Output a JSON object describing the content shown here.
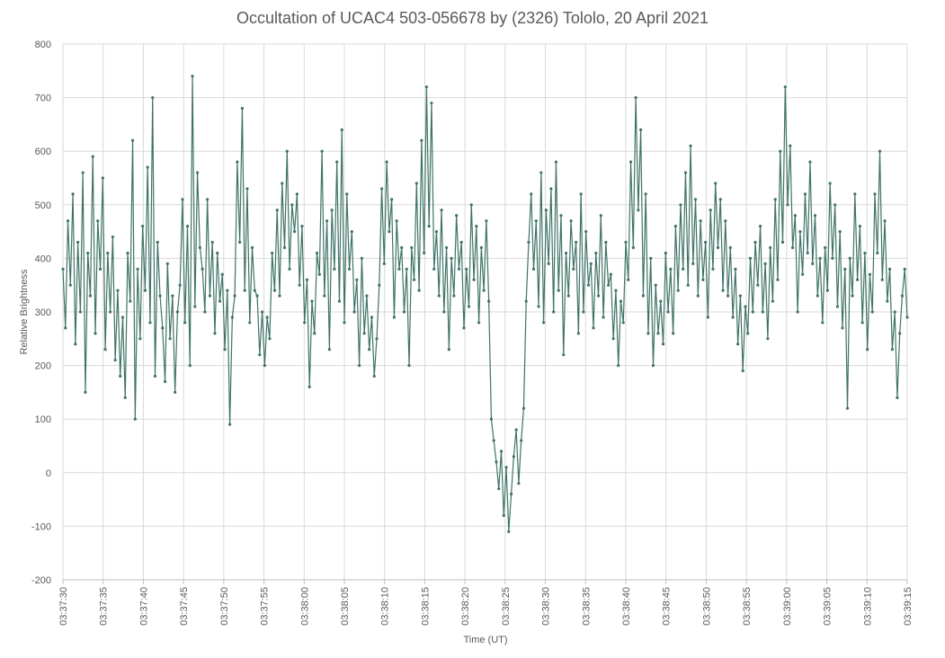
{
  "chart_data": {
    "type": "line",
    "title": "Occultation of UCAC4 503-056678 by (2326) Tololo, 20 April 2021",
    "xlabel": "Time (UT)",
    "ylabel": "Relative Brightness",
    "ylim": [
      -200,
      800
    ],
    "yticks": [
      "-200",
      "-100",
      "0",
      "100",
      "200",
      "300",
      "400",
      "500",
      "600",
      "700",
      "800"
    ],
    "xticks": [
      "03:37:30",
      "03:37:35",
      "03:37:40",
      "03:37:45",
      "03:37:50",
      "03:37:55",
      "03:38:00",
      "03:38:05",
      "03:38:10",
      "03:38:15",
      "03:38:20",
      "03:38:25",
      "03:38:30",
      "03:38:35",
      "03:38:40",
      "03:38:45",
      "03:38:50",
      "03:38:55",
      "03:39:00",
      "03:39:05",
      "03:39:10",
      "03:39:15"
    ],
    "grid": true,
    "line_color": "#3f7366",
    "series": [
      {
        "x_start": "03:37:30",
        "x_end": "03:39:15",
        "approx_values": [
          380,
          270,
          470,
          350,
          520,
          240,
          430,
          300,
          560,
          150,
          410,
          330,
          590,
          260,
          470,
          380,
          550,
          230,
          410,
          300,
          440,
          210,
          340,
          180,
          290,
          140,
          410,
          320,
          620,
          100,
          380,
          250,
          460,
          340,
          570,
          280,
          700,
          180,
          430,
          330,
          270,
          170,
          390,
          250,
          330,
          150,
          300,
          350,
          510,
          280,
          460,
          200,
          740,
          310,
          560,
          420,
          380,
          300,
          510,
          330,
          430,
          260,
          410,
          320,
          370,
          230,
          340,
          90,
          290,
          330,
          580,
          430,
          680,
          340,
          530,
          280,
          420,
          340,
          330,
          220,
          300,
          200,
          290,
          250,
          410,
          340,
          490,
          330,
          540,
          420,
          600,
          380,
          500,
          450,
          520,
          350,
          460,
          280,
          360,
          160,
          320,
          260,
          410,
          370,
          600,
          330,
          470,
          230,
          490,
          380,
          580,
          320,
          640,
          280,
          520,
          380,
          450,
          300,
          360,
          200,
          400,
          260,
          330,
          230,
          290,
          180,
          250,
          350,
          530,
          390,
          580,
          450,
          510,
          290,
          470,
          380,
          420,
          300,
          380,
          200,
          420,
          360,
          540,
          340,
          620,
          410,
          720,
          460,
          690,
          380,
          450,
          330,
          490,
          300,
          420,
          230,
          400,
          330,
          480,
          380,
          430,
          270,
          380,
          310,
          500,
          360,
          460,
          280,
          420,
          340,
          470,
          320,
          100,
          60,
          20,
          -30,
          40,
          -80,
          10,
          -110,
          -40,
          30,
          80,
          -20,
          60,
          120,
          320,
          430,
          520,
          380,
          470,
          310,
          560,
          280,
          490,
          390,
          530,
          300,
          580,
          340,
          480,
          220,
          410,
          330,
          470,
          380,
          430,
          260,
          520,
          300,
          450,
          350,
          390,
          270,
          410,
          330,
          480,
          290,
          430,
          350,
          370,
          250,
          340,
          200,
          320,
          280,
          430,
          360,
          580,
          420,
          700,
          490,
          640,
          330,
          520,
          260,
          400,
          200,
          350,
          260,
          320,
          240,
          410,
          300,
          380,
          260,
          460,
          340,
          500,
          380,
          560,
          350,
          610,
          390,
          510,
          330,
          470,
          360,
          430,
          290,
          490,
          380,
          540,
          420,
          510,
          340,
          470,
          330,
          420,
          290,
          380,
          240,
          330,
          190,
          310,
          260,
          400,
          300,
          430,
          350,
          460,
          300,
          390,
          250,
          420,
          320,
          510,
          360,
          600,
          430,
          720,
          500,
          610,
          420,
          480,
          300,
          450,
          370,
          520,
          410,
          580,
          390,
          480,
          330,
          400,
          280,
          420,
          340,
          540,
          400,
          500,
          310,
          450,
          270,
          380,
          120,
          400,
          330,
          520,
          360,
          460,
          280,
          410,
          230,
          370,
          300,
          520,
          410,
          600,
          360,
          470,
          320,
          380,
          230,
          300,
          140,
          260,
          330,
          380,
          290
        ]
      }
    ]
  }
}
